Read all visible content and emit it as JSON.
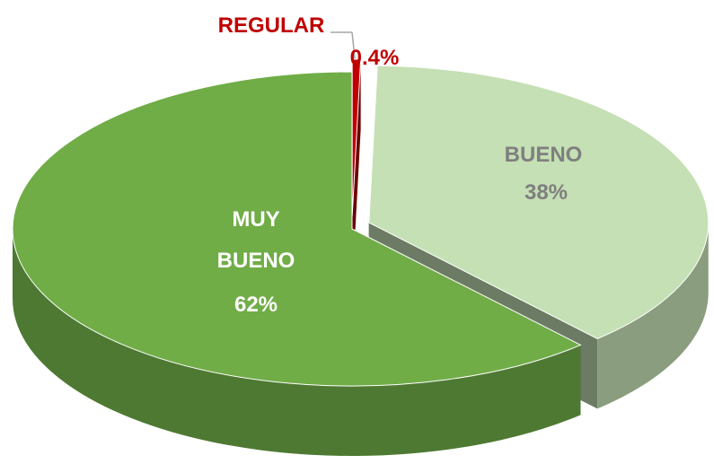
{
  "chart_data": {
    "type": "pie",
    "categories": [
      "REGULAR",
      "BUENO",
      "MUY BUENO"
    ],
    "values": [
      0.4,
      38,
      62
    ],
    "value_labels": [
      "0.4%",
      "38%",
      "62%"
    ],
    "colors": [
      "#c00000",
      "#c5e0b4",
      "#70ad47"
    ],
    "label_colors": [
      "#c00000",
      "#7f7f7f",
      "#ffffff"
    ]
  }
}
